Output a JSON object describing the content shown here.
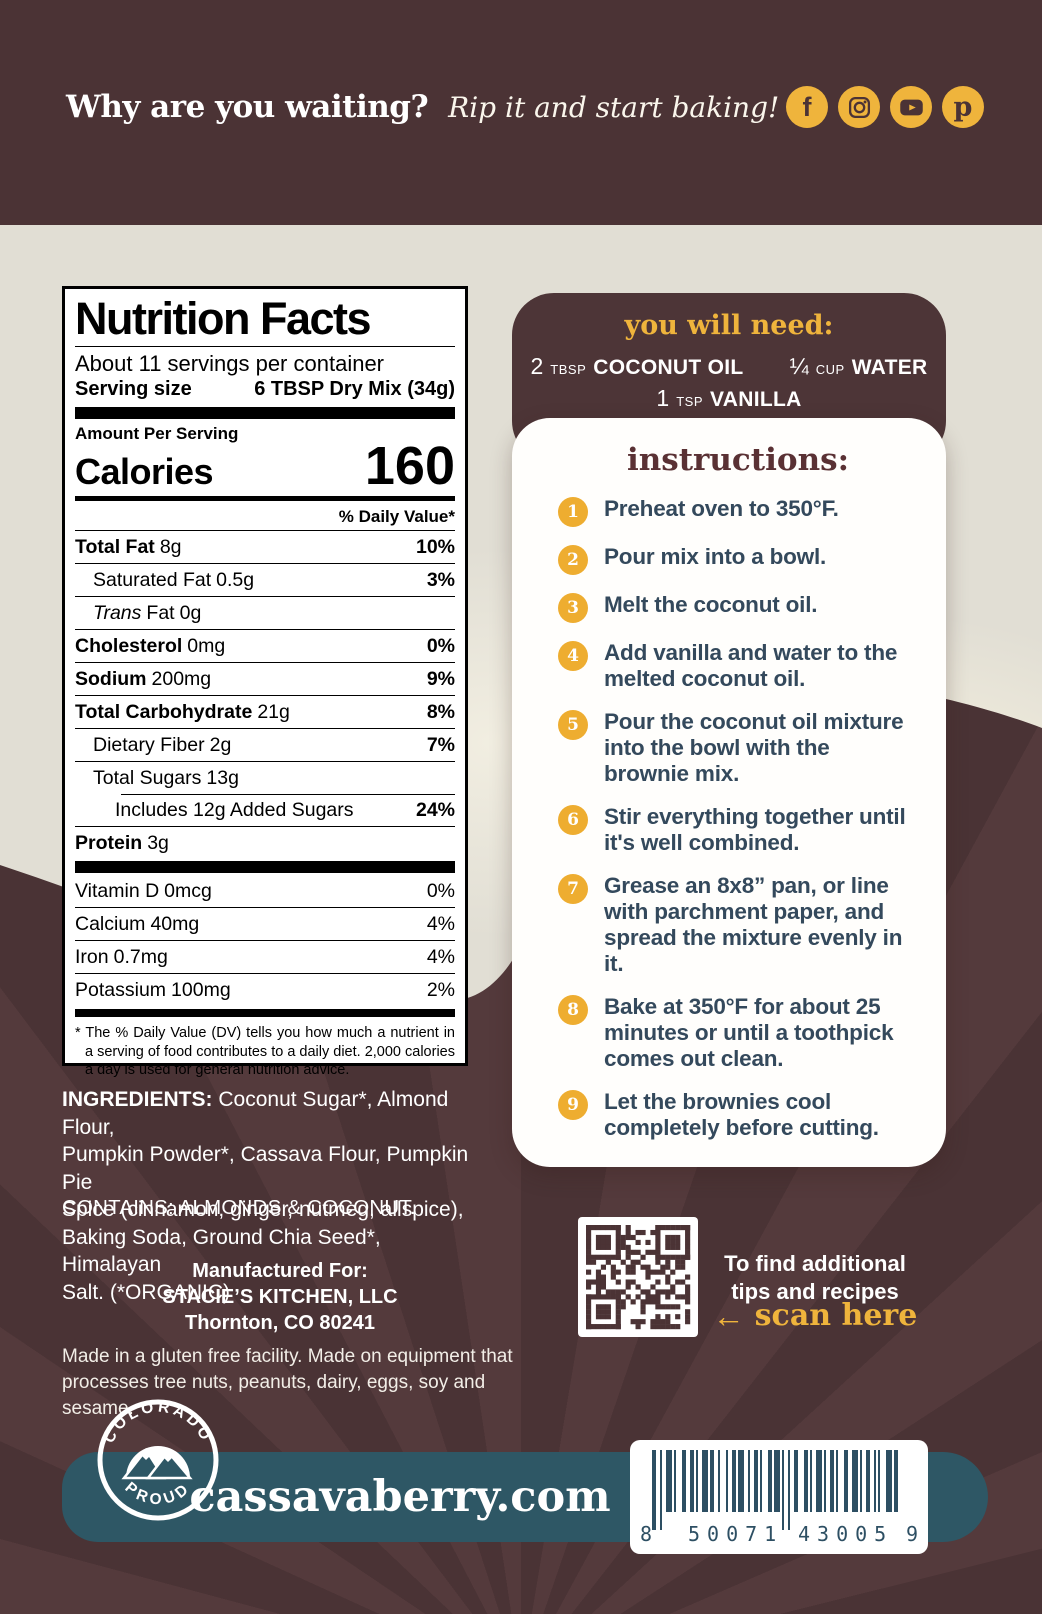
{
  "header": {
    "headline": "Why are you waiting?",
    "tagline": "Rip it and start baking!",
    "social": {
      "facebook": "f",
      "pinterest": "p"
    }
  },
  "nutrition": {
    "title": "Nutrition Facts",
    "servings_per_container": "About 11 servings per container",
    "serving_size_label": "Serving size",
    "serving_size_value": "6 TBSP Dry Mix (34g)",
    "amount_per_serving": "Amount Per Serving",
    "calories_label": "Calories",
    "calories_value": "160",
    "daily_value_header": "% Daily Value*",
    "rows": [
      {
        "name": "Total Fat",
        "amount": "8g",
        "dv": "10%"
      },
      {
        "name": "Saturated Fat",
        "amount": "0.5g",
        "dv": "3%"
      },
      {
        "name_italic": "Trans",
        "name_rest": "Fat",
        "amount": "0g",
        "dv": ""
      },
      {
        "name": "Cholesterol",
        "amount": "0mg",
        "dv": "0%"
      },
      {
        "name": "Sodium",
        "amount": "200mg",
        "dv": "9%"
      },
      {
        "name": "Total Carbohydrate",
        "amount": "21g",
        "dv": "8%"
      },
      {
        "name": "Dietary Fiber",
        "amount": "2g",
        "dv": "7%"
      },
      {
        "name": "Total Sugars",
        "amount": "13g",
        "dv": ""
      },
      {
        "name": "Includes 12g Added Sugars",
        "amount": "",
        "dv": "24%"
      },
      {
        "name": "Protein",
        "amount": "3g",
        "dv": ""
      }
    ],
    "vitamins": [
      {
        "name": "Vitamin D",
        "amount": "0mcg",
        "dv": "0%"
      },
      {
        "name": "Calcium",
        "amount": "40mg",
        "dv": "4%"
      },
      {
        "name": "Iron",
        "amount": "0.7mg",
        "dv": "4%"
      },
      {
        "name": "Potassium",
        "amount": "100mg",
        "dv": "2%"
      }
    ],
    "footnote": "* The % Daily Value (DV) tells you how much a nutrient in a serving of food contributes to a daily diet. 2,000 calories a day is used for general nutrition advice."
  },
  "you_will_need": {
    "title": "you will need:",
    "items": [
      {
        "qty": "2",
        "unit": "TBSP",
        "name": "COCONUT OIL"
      },
      {
        "qty": "¼",
        "unit": "CUP",
        "name": "WATER"
      },
      {
        "qty": "1",
        "unit": "TSP",
        "name": "VANILLA"
      }
    ]
  },
  "instructions": {
    "title": "instructions:",
    "steps": [
      {
        "num": "1",
        "text": "Preheat oven to 350°F."
      },
      {
        "num": "2",
        "text": "Pour mix into a bowl."
      },
      {
        "num": "3",
        "text": "Melt the coconut oil."
      },
      {
        "num": "4",
        "text": "Add vanilla and water to the\nmelted coconut oil."
      },
      {
        "num": "5",
        "text": "Pour the coconut oil mixture\ninto the bowl with the\nbrownie mix."
      },
      {
        "num": "6",
        "text": "Stir everything together until\nit's well combined."
      },
      {
        "num": "7",
        "text": "Grease an 8x8” pan, or line\nwith parchment paper, and\nspread the mixture evenly in it."
      },
      {
        "num": "8",
        "text": "Bake at 350°F for about 25\nminutes or until a toothpick\ncomes out clean."
      },
      {
        "num": "9",
        "text": "Let the brownies cool\ncompletely before cutting."
      }
    ]
  },
  "ingredients": {
    "label": "INGREDIENTS:",
    "text": "Coconut Sugar*, Almond Flour,\nPumpkin Powder*, Cassava Flour, Pumpkin Pie\nSpice (cinnamon, ginger, nutmeg, allspice),\nBaking Soda, Ground Chia Seed*, Himalayan\nSalt. (*ORGANIC)"
  },
  "contains": "CONTAINS: ALMONDS & COCONUT.",
  "manufactured": {
    "line1": "Manufactured For:",
    "line2": "STACIE’S KITCHEN, LLC",
    "line3": "Thornton, CO 80241"
  },
  "facility_note": "Made in a gluten free facility. Made on equipment that\nprocesses tree nuts, peanuts, dairy, eggs, soy and sesame.",
  "qr_section": {
    "line1": "To find additional",
    "line2": "tips and recipes",
    "arrow": "←",
    "scan_label": "scan here"
  },
  "footer": {
    "website": "cassavaberry.com",
    "logo_arc_top": "COLORADO",
    "logo_arc_bottom": "PROUD",
    "barcode": {
      "d1": "8",
      "d2": "50071",
      "d3": "43005",
      "d4": "9"
    }
  },
  "colors": {
    "brown_dark": "#4b3335",
    "cream": "#e1ded4",
    "accent_yellow": "#efb43c",
    "step_text_blue": "#34495c",
    "teal": "#2e5765",
    "heading_maroon": "#5a3134"
  }
}
